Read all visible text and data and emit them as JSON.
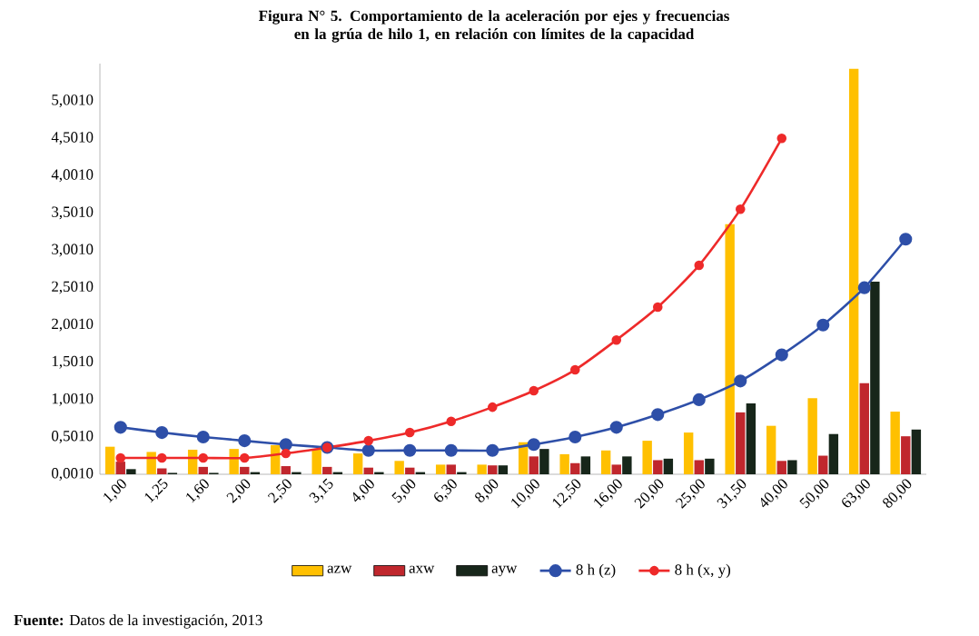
{
  "chart_data": {
    "type": "bar",
    "title": "Figura N° 5. Comportamiento de la aceleración por ejes y frecuencias en la grúa de hilo 1, en relación con límites de la capacidad",
    "annotations": [
      "**Fuente:** Datos de la investigación, 2013"
    ],
    "categories": [
      "1,00",
      "1,25",
      "1,60",
      "2,00",
      "2,50",
      "3,15",
      "4,00",
      "5,00",
      "6,30",
      "8,00",
      "10,00",
      "12,50",
      "16,00",
      "20,00",
      "25,00",
      "31,50",
      "40,00",
      "50,00",
      "63,00",
      "80,00"
    ],
    "series": [
      {
        "name": "azw",
        "color": "#ffc000",
        "values": [
          0.37,
          0.3,
          0.33,
          0.34,
          0.39,
          0.34,
          0.28,
          0.18,
          0.13,
          0.13,
          0.43,
          0.27,
          0.32,
          0.45,
          0.56,
          3.35,
          0.65,
          1.02,
          5.43,
          0.84
        ]
      },
      {
        "name": "axw",
        "color": "#c0272d",
        "values": [
          0.17,
          0.08,
          0.1,
          0.1,
          0.11,
          0.1,
          0.09,
          0.09,
          0.13,
          0.12,
          0.24,
          0.15,
          0.13,
          0.19,
          0.19,
          0.83,
          0.18,
          0.25,
          1.22,
          0.51
        ]
      },
      {
        "name": "ayw",
        "color": "#17261a",
        "values": [
          0.07,
          0.02,
          0.02,
          0.03,
          0.03,
          0.03,
          0.03,
          0.03,
          0.03,
          0.12,
          0.34,
          0.24,
          0.24,
          0.21,
          0.21,
          0.95,
          0.19,
          0.54,
          2.58,
          0.6
        ]
      },
      {
        "name": "8 h (z)",
        "type": "line",
        "color": "#2e4fa8",
        "values": [
          0.63,
          0.56,
          0.5,
          0.45,
          0.4,
          0.36,
          0.32,
          0.32,
          0.32,
          0.32,
          0.4,
          0.5,
          0.63,
          0.8,
          1.0,
          1.25,
          1.6,
          2.0,
          2.5,
          3.15
        ]
      },
      {
        "name": "8 h (x, y)",
        "type": "line",
        "color": "#ee2a2a",
        "values": [
          0.22,
          0.22,
          0.22,
          0.22,
          0.28,
          0.36,
          0.45,
          0.56,
          0.71,
          0.9,
          1.12,
          1.4,
          1.8,
          2.24,
          2.8,
          3.55,
          4.5,
          null,
          null,
          null
        ]
      }
    ],
    "ylim": [
      0.001,
      5.501
    ],
    "yticks": [
      {
        "value": 0.001,
        "label": "0,0010"
      },
      {
        "value": 0.501,
        "label": "0,5010"
      },
      {
        "value": 1.001,
        "label": "1,0010"
      },
      {
        "value": 1.501,
        "label": "1,5010"
      },
      {
        "value": 2.001,
        "label": "2,0010"
      },
      {
        "value": 2.501,
        "label": "2,5010"
      },
      {
        "value": 3.001,
        "label": "3,0010"
      },
      {
        "value": 3.501,
        "label": "3,5010"
      },
      {
        "value": 4.001,
        "label": "4,0010"
      },
      {
        "value": 4.501,
        "label": "4,5010"
      },
      {
        "value": 5.001,
        "label": "5,0010"
      }
    ],
    "legend": "bottom",
    "marker": "circle",
    "grid": false
  }
}
